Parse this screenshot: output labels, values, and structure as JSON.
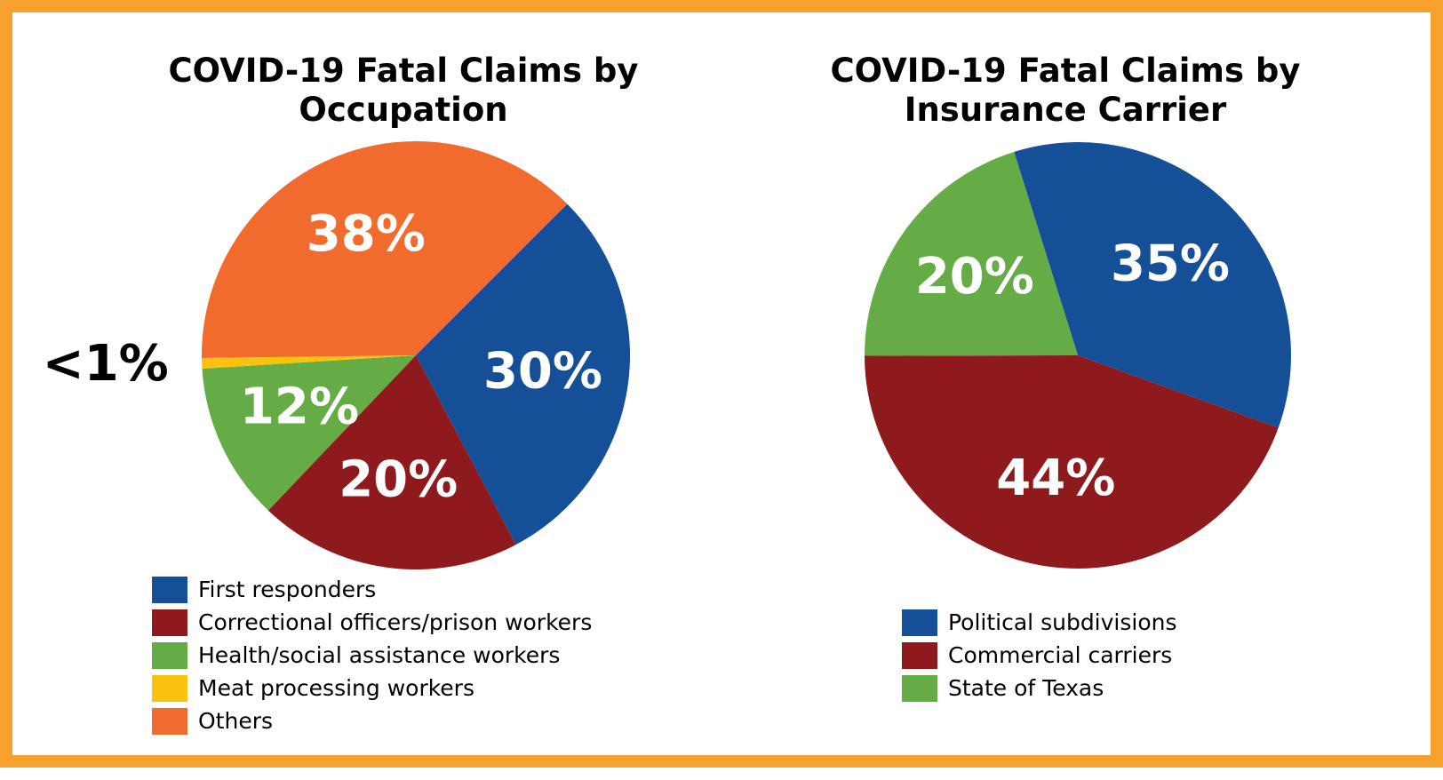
{
  "chart_data": [
    {
      "type": "pie",
      "title": "COVID-19 Fatal Claims by Occupation",
      "categories": [
        "First responders",
        "Correctional officers/prison workers",
        "Health/social assistance workers",
        "Meat processing workers",
        "Others"
      ],
      "values": [
        30,
        20,
        12,
        0.8,
        38
      ],
      "value_labels": [
        "30%",
        "20%",
        "12%",
        "<1%",
        "38%"
      ],
      "colors": [
        "#154f98",
        "#8f1a1e",
        "#65ac47",
        "#f9c20f",
        "#f06b2d"
      ]
    },
    {
      "type": "pie",
      "title": "COVID-19 Fatal Claims by Insurance Carrier",
      "categories": [
        "Political subdivisions",
        "Commercial carriers",
        "State of Texas"
      ],
      "values": [
        35,
        44,
        20
      ],
      "value_labels": [
        "35%",
        "44%",
        "20%"
      ],
      "colors": [
        "#154f98",
        "#8f1a1e",
        "#65ac47"
      ]
    }
  ]
}
